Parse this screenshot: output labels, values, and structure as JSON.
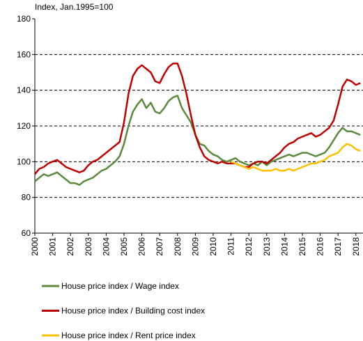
{
  "chart_data": {
    "type": "line",
    "y_label": "Index, Jan.1995=100",
    "x": [
      2000,
      2000.25,
      2000.5,
      2000.75,
      2001,
      2001.25,
      2001.5,
      2001.75,
      2002,
      2002.25,
      2002.5,
      2002.75,
      2003,
      2003.25,
      2003.5,
      2003.75,
      2004,
      2004.25,
      2004.5,
      2004.75,
      2005,
      2005.25,
      2005.5,
      2005.75,
      2006,
      2006.25,
      2006.5,
      2006.75,
      2007,
      2007.25,
      2007.5,
      2007.75,
      2008,
      2008.25,
      2008.5,
      2008.75,
      2009,
      2009.25,
      2009.5,
      2009.75,
      2010,
      2010.25,
      2010.5,
      2010.75,
      2011,
      2011.25,
      2011.5,
      2011.75,
      2012,
      2012.25,
      2012.5,
      2012.75,
      2013,
      2013.25,
      2013.5,
      2013.75,
      2014,
      2014.25,
      2014.5,
      2014.75,
      2015,
      2015.25,
      2015.5,
      2015.75,
      2016,
      2016.25,
      2016.5,
      2016.75,
      2017,
      2017.25,
      2017.5,
      2017.75,
      2018,
      2018.25
    ],
    "series": [
      {
        "name": "House price index / Wage index",
        "color": "#5b8a3c",
        "values": [
          89,
          91,
          93,
          92,
          93,
          94,
          92,
          90,
          88,
          88,
          87,
          89,
          90,
          91,
          93,
          95,
          96,
          98,
          100,
          103,
          110,
          120,
          128,
          132,
          135,
          130,
          133,
          128,
          127,
          130,
          134,
          136,
          137,
          130,
          126,
          122,
          115,
          110,
          109,
          106,
          104,
          103,
          101,
          100,
          101,
          102,
          100,
          99,
          98,
          99,
          98,
          100,
          98,
          100,
          101,
          102,
          103,
          104,
          103,
          104,
          105,
          105,
          104,
          103,
          104,
          105,
          108,
          112,
          116,
          119,
          117,
          117,
          116,
          115
        ]
      },
      {
        "name": "House price index / Building cost index",
        "color": "#c00000",
        "values": [
          93,
          96,
          97,
          99,
          100,
          101,
          99,
          97,
          96,
          95,
          94,
          95,
          98,
          100,
          101,
          103,
          105,
          107,
          109,
          111,
          122,
          138,
          148,
          152,
          154,
          152,
          150,
          145,
          144,
          149,
          153,
          155,
          155,
          148,
          138,
          126,
          115,
          108,
          103,
          101,
          100,
          99,
          100,
          99,
          99,
          99,
          98,
          97,
          97,
          99,
          100,
          100,
          99,
          101,
          103,
          105,
          108,
          110,
          111,
          113,
          114,
          115,
          116,
          114,
          115,
          117,
          119,
          123,
          132,
          142,
          146,
          145,
          143,
          144
        ]
      },
      {
        "name": "House price index / Rent price index",
        "color": "#ffc000",
        "values": [
          null,
          null,
          null,
          null,
          null,
          null,
          null,
          null,
          null,
          null,
          null,
          null,
          null,
          null,
          null,
          null,
          null,
          null,
          null,
          null,
          null,
          null,
          null,
          null,
          null,
          null,
          null,
          null,
          null,
          null,
          null,
          null,
          null,
          null,
          null,
          null,
          null,
          null,
          null,
          null,
          null,
          null,
          null,
          null,
          100,
          99,
          98,
          97,
          96,
          97,
          96,
          95,
          95,
          95,
          96,
          95,
          95,
          96,
          95,
          96,
          97,
          98,
          99,
          99,
          100,
          101,
          103,
          104,
          105,
          108,
          110,
          109,
          107,
          106
        ]
      }
    ],
    "xlim": [
      2000,
      2018.4
    ],
    "xticks": [
      2000,
      2001,
      2002,
      2003,
      2004,
      2005,
      2006,
      2007,
      2008,
      2009,
      2010,
      2011,
      2012,
      2013,
      2014,
      2015,
      2016,
      2017,
      2018
    ],
    "ylim": [
      60,
      180
    ],
    "yticks": [
      60,
      80,
      100,
      120,
      140,
      160,
      180
    ],
    "grid": true
  }
}
